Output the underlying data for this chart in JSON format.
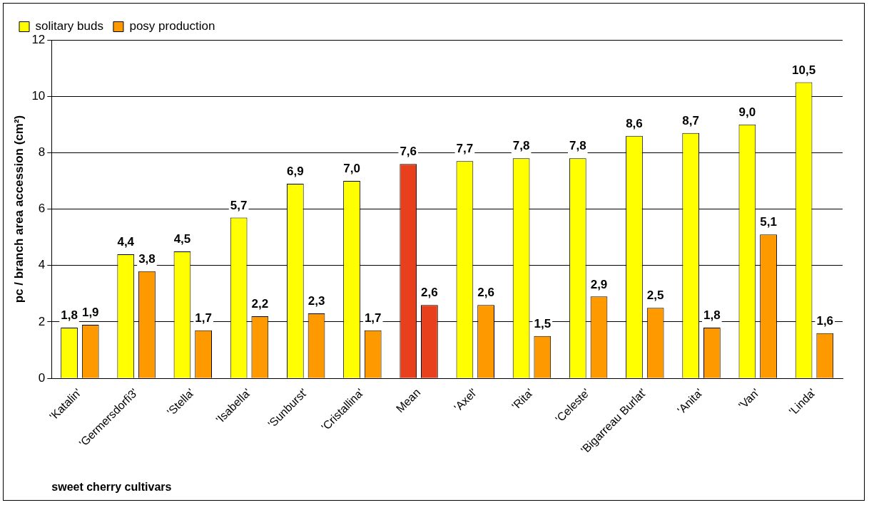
{
  "chart_data": {
    "type": "bar",
    "xlabel": "sweet cherry cultivars",
    "ylabel": "pc / branch area accession (cm²)",
    "categories": [
      "'Katalin'",
      "'Germersdorfi3'",
      "'Stella'",
      "'Isabella'",
      "'Sunburst'",
      "'Cristallina'",
      "Mean",
      "'Axel'",
      "'Rita'",
      "'Celeste'",
      "'Bigarreau Burlat'",
      "'Anita'",
      "'Van'",
      "'Linda'"
    ],
    "series": [
      {
        "name": "solitary buds",
        "color": "#ffff00",
        "colors": [
          "#ffff00",
          "#ffff00",
          "#ffff00",
          "#ffff00",
          "#ffff00",
          "#ffff00",
          "#e8401c",
          "#ffff00",
          "#ffff00",
          "#ffff00",
          "#ffff00",
          "#ffff00",
          "#ffff00",
          "#ffff00"
        ],
        "values": [
          1.8,
          4.4,
          4.5,
          5.7,
          6.9,
          7.0,
          7.6,
          7.7,
          7.8,
          7.8,
          8.6,
          8.7,
          9.0,
          10.5
        ],
        "value_labels": [
          "1,8",
          "4,4",
          "4,5",
          "5,7",
          "6,9",
          "7,0",
          "7,6",
          "7,7",
          "7,8",
          "7,8",
          "8,6",
          "8,7",
          "9,0",
          "10,5"
        ]
      },
      {
        "name": "posy production",
        "color": "#ff9900",
        "colors": [
          "#ff9900",
          "#ff9900",
          "#ff9900",
          "#ff9900",
          "#ff9900",
          "#ff9900",
          "#e8401c",
          "#ff9900",
          "#ff9900",
          "#ff9900",
          "#ff9900",
          "#ff9900",
          "#ff9900",
          "#ff9900"
        ],
        "values": [
          1.9,
          3.8,
          1.7,
          2.2,
          2.3,
          1.7,
          2.6,
          2.6,
          1.5,
          2.9,
          2.5,
          1.8,
          5.1,
          1.6
        ],
        "value_labels": [
          "1,9",
          "3,8",
          "1,7",
          "2,2",
          "2,3",
          "1,7",
          "2,6",
          "2,6",
          "1,5",
          "2,9",
          "2,5",
          "1,8",
          "5,1",
          "1,6"
        ]
      }
    ],
    "ylim": [
      0,
      12
    ],
    "yticks": [
      0,
      2,
      4,
      6,
      8,
      10,
      12
    ],
    "grid": "y",
    "legend": "top left"
  }
}
